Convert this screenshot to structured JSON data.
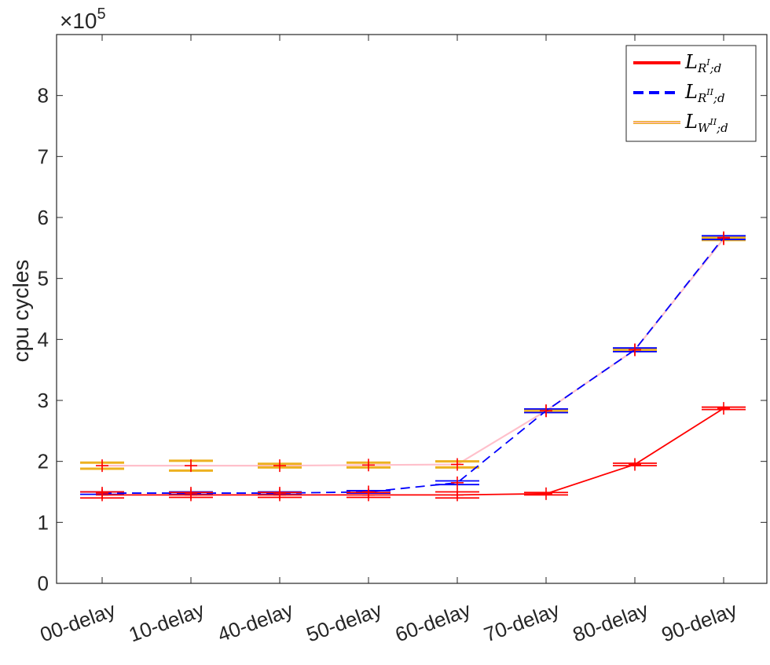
{
  "chart_data": {
    "type": "line",
    "categories": [
      "00-delay",
      "10-delay",
      "40-delay",
      "50-delay",
      "60-delay",
      "70-delay",
      "80-delay",
      "90-delay"
    ],
    "ylabel": "cpu cycles",
    "y_exponent_prefix": "×10",
    "y_exponent_power": "5",
    "y_scale": 100000,
    "ylim": [
      0,
      9
    ],
    "yticks": [
      0,
      1,
      2,
      3,
      4,
      5,
      6,
      7,
      8
    ],
    "grid": false,
    "legend_position": "top-right",
    "series": [
      {
        "name": "L_{R^I;d}",
        "legend_base": "L",
        "legend_sub_a": "R",
        "legend_sup": "I",
        "legend_sub_b": ";d",
        "color": "#ff0000",
        "dash": "solid",
        "values": [
          1.45,
          1.45,
          1.45,
          1.45,
          1.45,
          1.47,
          1.95,
          2.87
        ],
        "errors": [
          0.05,
          0.04,
          0.04,
          0.04,
          0.05,
          0.02,
          0.02,
          0.02
        ]
      },
      {
        "name": "L_{R^II;d}",
        "legend_base": "L",
        "legend_sub_a": "R",
        "legend_sup": "II",
        "legend_sub_b": ";d",
        "color": "#0000ff",
        "dash": "dashed",
        "values": [
          1.48,
          1.48,
          1.48,
          1.5,
          1.65,
          2.83,
          3.83,
          5.67
        ],
        "errors": [
          0.02,
          0.02,
          0.02,
          0.02,
          0.03,
          0.03,
          0.03,
          0.03
        ]
      },
      {
        "name": "L_{W^II;d}",
        "legend_base": "L",
        "legend_sub_a": "W",
        "legend_sup": "II",
        "legend_sub_b": ";d",
        "color": "#edb120",
        "line_color": "#ffc0cb",
        "dash": "solid",
        "values": [
          1.93,
          1.93,
          1.93,
          1.94,
          1.95,
          2.83,
          3.83,
          5.65
        ],
        "errors": [
          0.05,
          0.08,
          0.03,
          0.04,
          0.05,
          0.02,
          0.02,
          0.02
        ]
      }
    ]
  }
}
